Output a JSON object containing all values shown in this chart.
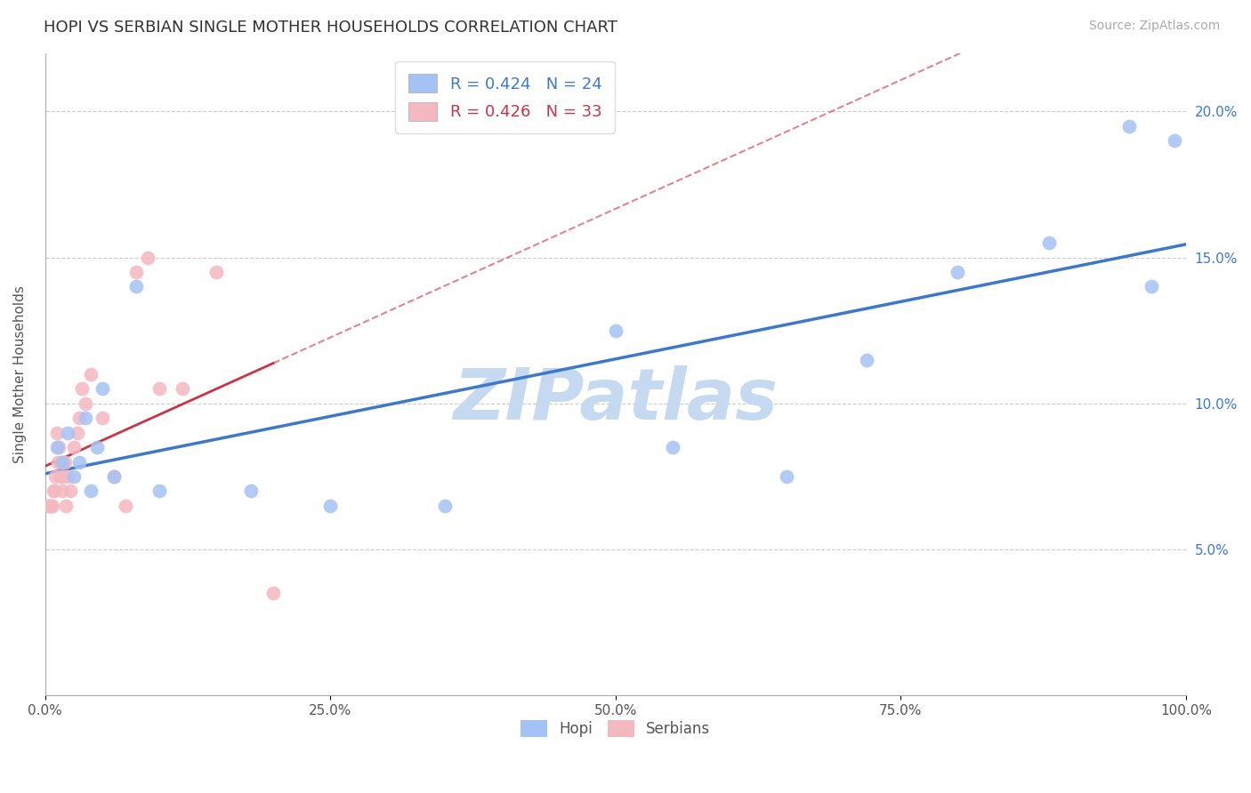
{
  "title": "HOPI VS SERBIAN SINGLE MOTHER HOUSEHOLDS CORRELATION CHART",
  "source": "Source: ZipAtlas.com",
  "ylabel": "Single Mother Households",
  "legend_r": [
    "R = 0.424",
    "R = 0.426"
  ],
  "legend_n": [
    "N = 24",
    "N = 33"
  ],
  "hopi_color": "#a4c2f4",
  "serbian_color": "#f4b8c1",
  "hopi_line_color": "#3d78c9",
  "serbian_line_color": "#cc3344",
  "hopi_x": [
    1.0,
    1.5,
    2.0,
    2.5,
    3.0,
    3.5,
    4.0,
    4.5,
    5.0,
    6.0,
    8.0,
    10.0,
    18.0,
    25.0,
    35.0,
    50.0,
    55.0,
    65.0,
    72.0,
    80.0,
    88.0,
    95.0,
    97.0,
    99.0
  ],
  "hopi_y": [
    8.5,
    8.0,
    9.0,
    7.5,
    8.0,
    9.5,
    7.0,
    8.5,
    10.5,
    7.5,
    14.0,
    7.0,
    7.0,
    6.5,
    6.5,
    12.5,
    8.5,
    7.5,
    11.5,
    14.5,
    15.5,
    19.5,
    14.0,
    19.0
  ],
  "serbian_x": [
    0.3,
    0.4,
    0.5,
    0.6,
    0.7,
    0.8,
    0.9,
    1.0,
    1.1,
    1.2,
    1.3,
    1.4,
    1.5,
    1.6,
    1.7,
    1.8,
    2.0,
    2.2,
    2.5,
    2.8,
    3.0,
    3.2,
    3.5,
    4.0,
    5.0,
    6.0,
    7.0,
    8.0,
    9.0,
    10.0,
    12.0,
    15.0,
    20.0
  ],
  "serbian_y": [
    6.5,
    6.5,
    6.5,
    6.5,
    7.0,
    7.0,
    7.5,
    9.0,
    8.0,
    8.5,
    7.5,
    8.0,
    7.0,
    7.5,
    8.0,
    6.5,
    7.5,
    7.0,
    8.5,
    9.0,
    9.5,
    10.5,
    10.0,
    11.0,
    9.5,
    7.5,
    6.5,
    14.5,
    15.0,
    10.5,
    10.5,
    14.5,
    3.5
  ],
  "xlim": [
    0,
    100
  ],
  "ylim": [
    0,
    22
  ],
  "ytick_vals": [
    5.0,
    10.0,
    15.0,
    20.0
  ],
  "ytick_labels": [
    "5.0%",
    "10.0%",
    "15.0%",
    "20.0%"
  ],
  "xtick_vals": [
    0,
    25,
    50,
    75,
    100
  ],
  "xtick_labels": [
    "0.0%",
    "25.0%",
    "50.0%",
    "75.0%",
    "100.0%"
  ],
  "grid_color": "#cccccc",
  "watermark": "ZIPatlas",
  "watermark_color": "#c5d9f1",
  "background_color": "#ffffff",
  "title_fontsize": 13,
  "axis_label_fontsize": 11,
  "tick_fontsize": 11,
  "source_fontsize": 10,
  "hopi_legend_label": "Hopi",
  "serbian_legend_label": "Serbians"
}
